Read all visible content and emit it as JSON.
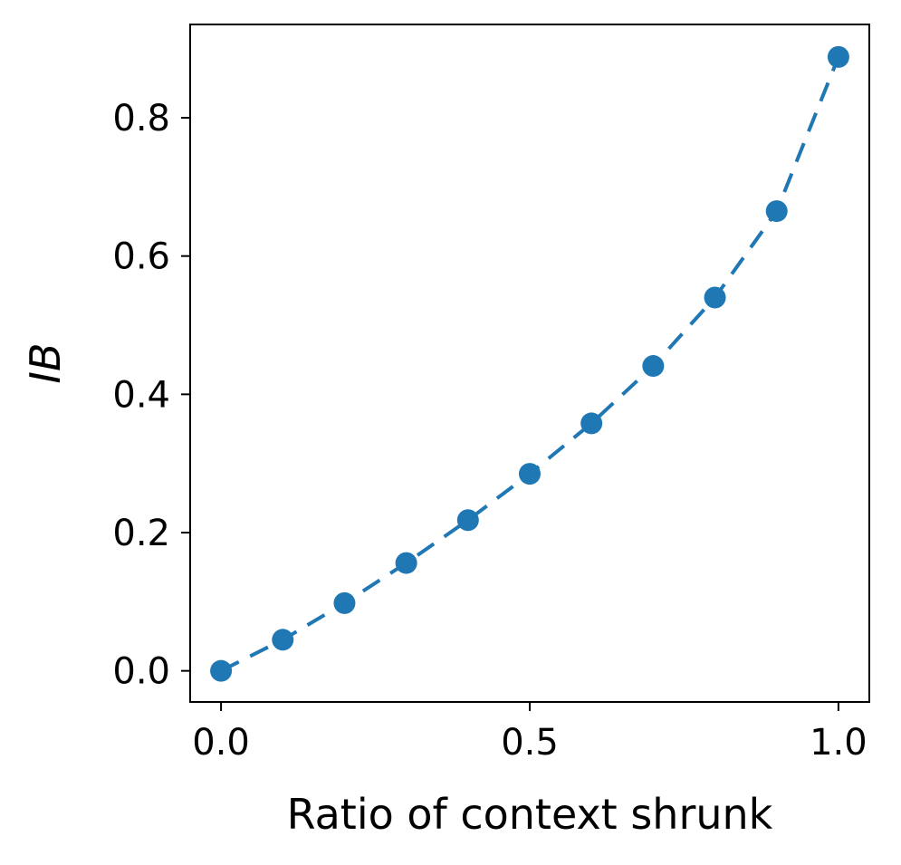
{
  "chart_data": {
    "type": "line",
    "title": "",
    "xlabel": "Ratio of context shrunk",
    "ylabel": "IB",
    "xlim": [
      -0.05,
      1.05
    ],
    "ylim": [
      -0.045,
      0.935
    ],
    "xticks": [
      0.0,
      0.5,
      1.0
    ],
    "xtick_labels": [
      "0.0",
      "0.5",
      "1.0"
    ],
    "yticks": [
      0.0,
      0.2,
      0.4,
      0.6,
      0.8
    ],
    "ytick_labels": [
      "0.0",
      "0.2",
      "0.4",
      "0.6",
      "0.8"
    ],
    "grid": false,
    "legend": "none",
    "series": [
      {
        "color": "#1f77b4",
        "line_style": "dashed",
        "marker": "circle",
        "x": [
          0.0,
          0.1,
          0.2,
          0.3,
          0.4,
          0.5,
          0.6,
          0.7,
          0.8,
          0.9,
          1.0
        ],
        "y": [
          0.0,
          0.045,
          0.098,
          0.156,
          0.218,
          0.285,
          0.358,
          0.441,
          0.54,
          0.665,
          0.888
        ]
      }
    ]
  }
}
